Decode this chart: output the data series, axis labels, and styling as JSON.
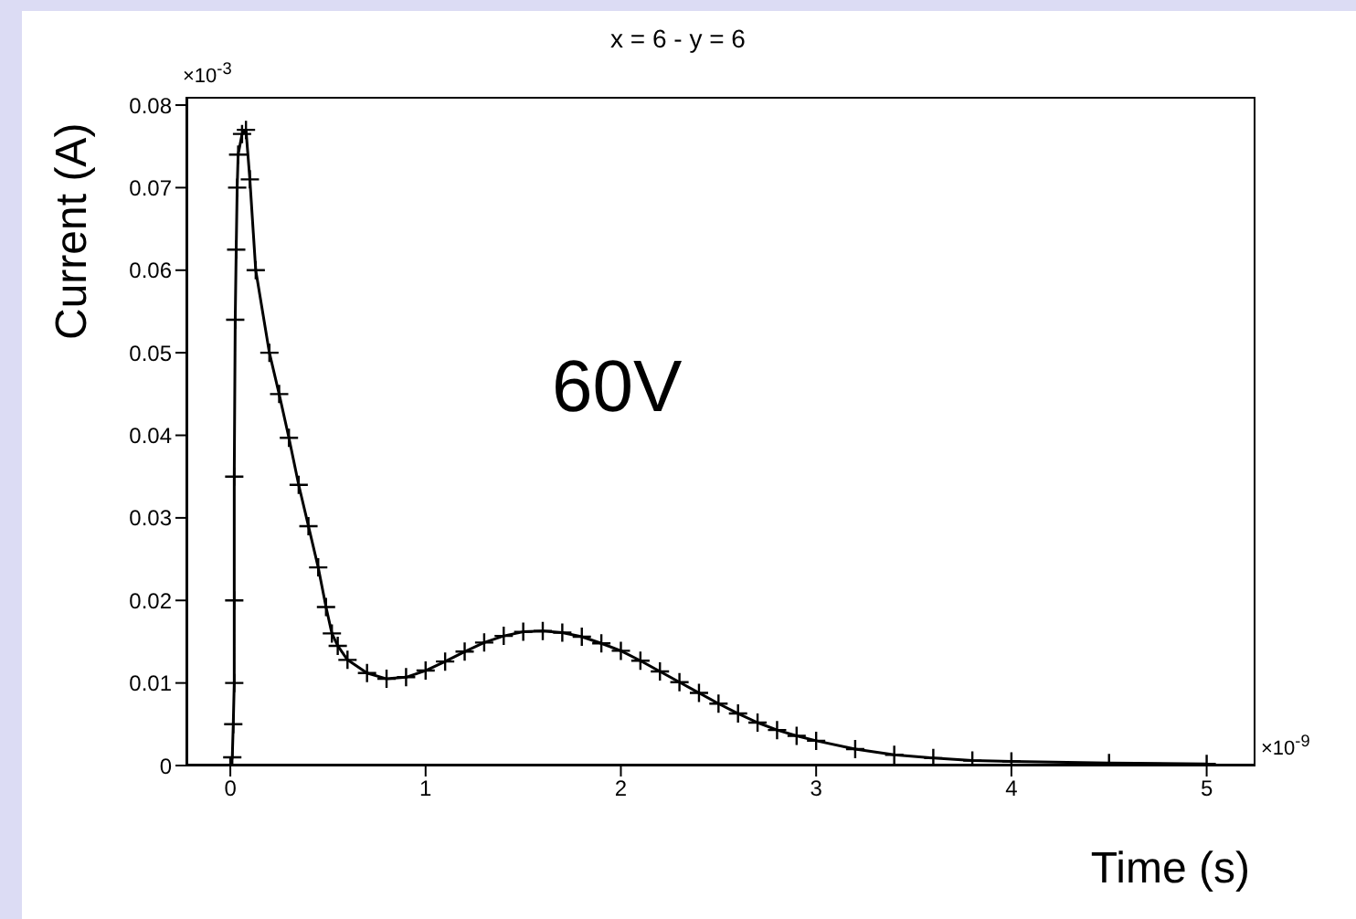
{
  "chart_data": {
    "type": "line",
    "title": "x = 6 - y = 6",
    "xlabel": "Time (s)",
    "ylabel": "Current (A)",
    "annotations": [
      "×10$^{-3}$",
      "×10$^{-9}$",
      "60V"
    ],
    "series": [
      {
        "color": "#000000",
        "x": [
          0,
          0.01,
          0.015,
          0.02,
          0.02,
          0.02,
          0.025,
          0.03,
          0.035,
          0.04,
          0.06,
          0.08,
          0.1,
          0.13,
          0.2,
          0.25,
          0.3,
          0.35,
          0.4,
          0.45,
          0.49,
          0.52,
          0.55,
          0.6,
          0.7,
          0.8,
          0.9,
          1.0,
          1.1,
          1.2,
          1.3,
          1.4,
          1.5,
          1.6,
          1.7,
          1.8,
          1.9,
          2.0,
          2.1,
          2.2,
          2.3,
          2.4,
          2.5,
          2.6,
          2.7,
          2.8,
          2.9,
          3.0,
          3.2,
          3.4,
          3.6,
          3.8,
          4.0,
          4.5,
          5.0
        ],
        "values": [
          0,
          0.001,
          0.005,
          0.01,
          0.02,
          0.035,
          0.054,
          0.0625,
          0.07,
          0.074,
          0.0765,
          0.077,
          0.071,
          0.06,
          0.05,
          0.045,
          0.0397,
          0.034,
          0.029,
          0.024,
          0.0192,
          0.016,
          0.0145,
          0.0128,
          0.0112,
          0.0105,
          0.0107,
          0.0115,
          0.0126,
          0.0138,
          0.0149,
          0.0157,
          0.0162,
          0.0163,
          0.0161,
          0.0156,
          0.0148,
          0.0139,
          0.0127,
          0.0114,
          0.0101,
          0.0088,
          0.0075,
          0.0063,
          0.0052,
          0.0043,
          0.0036,
          0.003,
          0.002,
          0.0013,
          0.0009,
          0.0006,
          0.0005,
          0.0003,
          0.0002
        ]
      }
    ],
    "xlim": [
      -0.225,
      5.25
    ],
    "xticks": [
      0,
      1,
      2,
      3,
      4,
      5
    ],
    "ylim": [
      0,
      0.081
    ],
    "yticks": [
      0,
      0.01,
      0.02,
      0.03,
      0.04,
      0.05,
      0.06,
      0.07,
      0.08
    ],
    "marker": "cross",
    "line_style": "solid",
    "grid": false,
    "legend": false
  }
}
